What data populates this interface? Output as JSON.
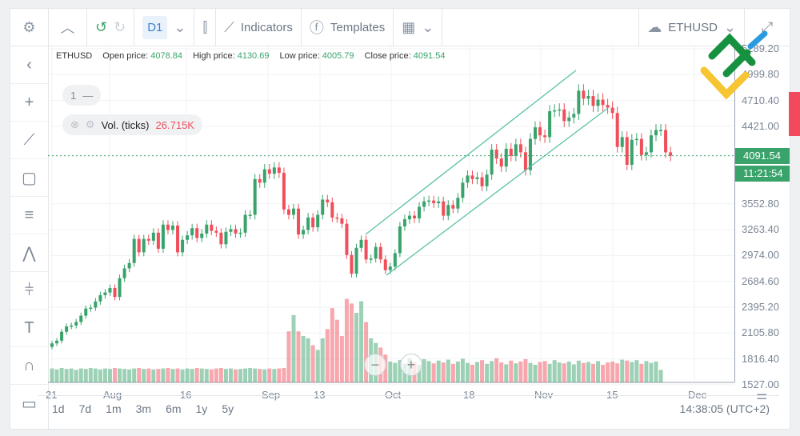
{
  "toolbar": {
    "timeframe": "D1",
    "indicators": "Indicators",
    "templates": "Templates",
    "symbol": "ETHUSD"
  },
  "legend": {
    "symbol": "ETHUSD",
    "open_label": "Open price:",
    "open": "4078.84",
    "high_label": "High price:",
    "high": "4130.69",
    "low_label": "Low price:",
    "low": "4005.79",
    "close_label": "Close price:",
    "close": "4091.54"
  },
  "pane_number": "1",
  "volume": {
    "label": "Vol. (ticks)",
    "value": "26.715K"
  },
  "price_tag": "4091.54",
  "countdown": "11:21:54",
  "timeframes": [
    "1d",
    "7d",
    "1m",
    "3m",
    "6m",
    "1y",
    "5y"
  ],
  "clock": "14:38:05 (UTC+2)",
  "colors": {
    "up": "#3aa36c",
    "down": "#ef4f5b",
    "accent": "#3b7fd0"
  },
  "chart_data": {
    "type": "candlestick",
    "start_date": "2021-07-21",
    "y_ticks": [
      "5289.20",
      "4999.80",
      "4710.40",
      "4421.00",
      "3552.80",
      "3263.40",
      "2974.00",
      "2684.60",
      "2395.20",
      "2105.80",
      "1816.40",
      "1527.00"
    ],
    "ylim": [
      1527,
      5289.2
    ],
    "x_ticks": [
      "21",
      "Aug",
      "16",
      "Sep",
      "13",
      "Oct",
      "18",
      "Nov",
      "15",
      "Dec"
    ],
    "close": [
      1990,
      2020,
      2120,
      2180,
      2190,
      2230,
      2300,
      2380,
      2390,
      2460,
      2530,
      2560,
      2610,
      2510,
      2720,
      2830,
      2890,
      3160,
      3010,
      3160,
      3140,
      3230,
      3050,
      3320,
      3260,
      3310,
      3010,
      3150,
      3200,
      3280,
      3170,
      3220,
      3320,
      3250,
      3230,
      3100,
      3240,
      3270,
      3220,
      3230,
      3430,
      3430,
      3830,
      3790,
      3940,
      3890,
      3960,
      3900,
      3490,
      3430,
      3500,
      3210,
      3260,
      3400,
      3290,
      3430,
      3600,
      3570,
      3400,
      3390,
      3330,
      2980,
      2770,
      3060,
      3150,
      2930,
      2940,
      3070,
      2930,
      2810,
      2850,
      3000,
      3300,
      3380,
      3420,
      3390,
      3520,
      3580,
      3590,
      3560,
      3580,
      3420,
      3540,
      3500,
      3620,
      3790,
      3870,
      3830,
      3850,
      3750,
      3880,
      4160,
      4060,
      3970,
      4170,
      4090,
      4220,
      4130,
      3930,
      4280,
      4410,
      4320,
      4300,
      4590,
      4600,
      4610,
      4480,
      4520,
      4560,
      4820,
      4730,
      4760,
      4650,
      4720,
      4660,
      4630,
      4570,
      4190,
      4300,
      3990,
      4270,
      4280,
      4100,
      4130,
      4320,
      4380,
      4380,
      4130,
      4091.54
    ],
    "volume_k": [
      30,
      28,
      31,
      29,
      30,
      27,
      30,
      29,
      31,
      30,
      28,
      30,
      29,
      31,
      30,
      29,
      28,
      30,
      31,
      29,
      30,
      28,
      29,
      30,
      31,
      29,
      30,
      28,
      30,
      29,
      31,
      30,
      29,
      28,
      30,
      31,
      29,
      30,
      28,
      29,
      30,
      31,
      30,
      29,
      28,
      30,
      29,
      30,
      31,
      110,
      145,
      110,
      100,
      95,
      80,
      70,
      95,
      115,
      160,
      135,
      100,
      180,
      170,
      150,
      175,
      130,
      95,
      85,
      75,
      60,
      45,
      42,
      48,
      40,
      52,
      44,
      38,
      50,
      46,
      41,
      47,
      43,
      49,
      40,
      45,
      51,
      42,
      38,
      44,
      48,
      40,
      46,
      52,
      43,
      39,
      47,
      41,
      45,
      50,
      42,
      38,
      44,
      46,
      40,
      48,
      43,
      41,
      45,
      39,
      47,
      42,
      44,
      40,
      46,
      38,
      43,
      45,
      41,
      49,
      47,
      44,
      48,
      40,
      46,
      42,
      45,
      27
    ],
    "price_line": 4091.54
  }
}
